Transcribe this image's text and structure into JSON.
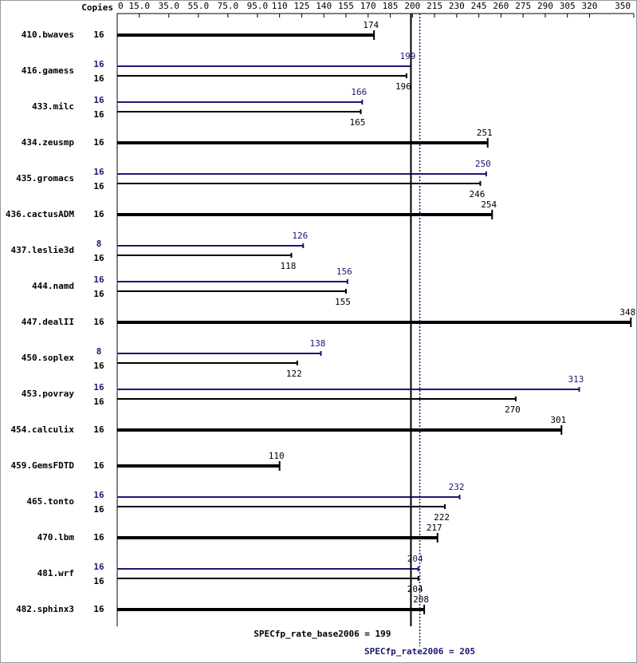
{
  "chart_data": {
    "type": "bar",
    "copies_label": "Copies",
    "categories": [
      "410.bwaves",
      "416.gamess",
      "433.milc",
      "434.zeusmp",
      "435.gromacs",
      "436.cactusADM",
      "437.leslie3d",
      "444.namd",
      "447.dealII",
      "450.soplex",
      "453.povray",
      "454.calculix",
      "459.GemsFDTD",
      "465.tonto",
      "470.lbm",
      "481.wrf",
      "482.sphinx3"
    ],
    "series": [
      {
        "name": "SPECfp_rate2006",
        "color": "#191970",
        "copies": [
          null,
          16,
          16,
          null,
          16,
          null,
          8,
          16,
          null,
          8,
          16,
          null,
          null,
          16,
          null,
          16,
          null
        ],
        "values": [
          null,
          199,
          166,
          null,
          250,
          null,
          126,
          156,
          null,
          138,
          313,
          null,
          null,
          232,
          null,
          204,
          null
        ]
      },
      {
        "name": "SPECfp_rate_base2006",
        "color": "#000000",
        "copies": [
          16,
          16,
          16,
          16,
          16,
          16,
          16,
          16,
          16,
          16,
          16,
          16,
          16,
          16,
          16,
          16,
          16
        ],
        "values": [
          174,
          196,
          165,
          251,
          246,
          254,
          118,
          155,
          348,
          122,
          270,
          301,
          110,
          222,
          217,
          204,
          208
        ]
      }
    ],
    "reference_lines": [
      {
        "label": "SPECfp_rate_base2006 = 199",
        "value": 199,
        "color": "#000000",
        "style": "solid"
      },
      {
        "label": "SPECfp_rate2006 = 205",
        "value": 205,
        "color": "#191970",
        "style": "dotted"
      }
    ],
    "xlim": [
      0,
      350
    ],
    "xticks": [
      0,
      {
        "value": 15,
        "label": "15.0"
      },
      {
        "value": 35,
        "label": "35.0"
      },
      {
        "value": 55,
        "label": "55.0"
      },
      {
        "value": 75,
        "label": "75.0"
      },
      {
        "value": 95,
        "label": "95.0"
      },
      110,
      125,
      140,
      155,
      170,
      185,
      200,
      215,
      230,
      245,
      260,
      275,
      290,
      305,
      320,
      350
    ]
  }
}
